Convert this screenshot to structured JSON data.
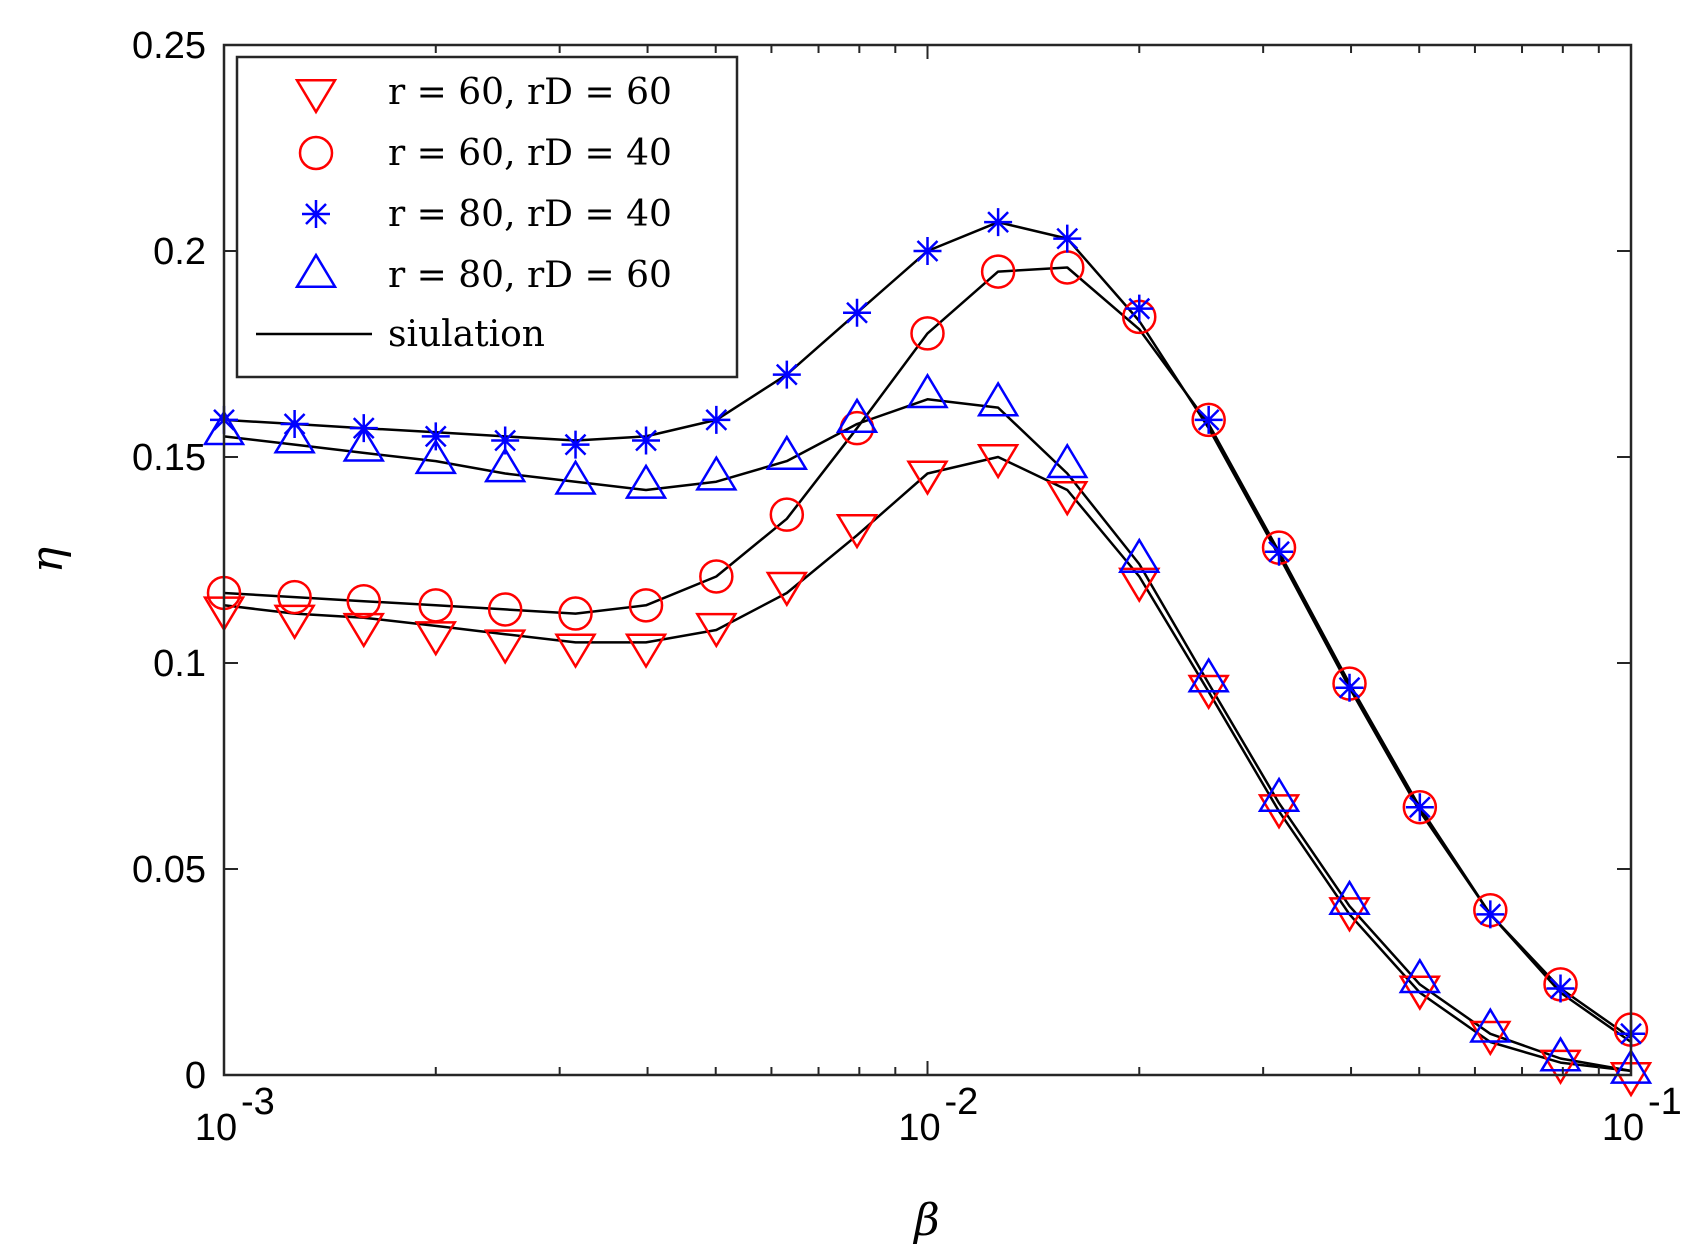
{
  "chart_data": {
    "type": "scatter",
    "title": "",
    "xlabel": "β",
    "ylabel": "η",
    "xscale": "log",
    "xlim": [
      0.001,
      0.1
    ],
    "ylim": [
      0,
      0.25
    ],
    "x_ticks": [
      {
        "value": 0.001,
        "base": "10",
        "exp": "-3"
      },
      {
        "value": 0.01,
        "base": "10",
        "exp": "-2"
      },
      {
        "value": 0.1,
        "base": "10",
        "exp": "-1"
      }
    ],
    "y_ticks": [
      {
        "value": 0,
        "label": "0"
      },
      {
        "value": 0.05,
        "label": "0.05"
      },
      {
        "value": 0.1,
        "label": "0.1"
      },
      {
        "value": 0.15,
        "label": "0.15"
      },
      {
        "value": 0.2,
        "label": "0.2"
      },
      {
        "value": 0.25,
        "label": "0.25"
      }
    ],
    "grid": false,
    "legend_position": "top-left",
    "x": [
      0.001,
      0.00126,
      0.00158,
      0.002,
      0.00251,
      0.00316,
      0.00398,
      0.00501,
      0.00631,
      0.00794,
      0.01,
      0.0126,
      0.0158,
      0.02,
      0.0251,
      0.0316,
      0.0398,
      0.0501,
      0.0631,
      0.0794,
      0.1
    ],
    "series": [
      {
        "name": "r = 60, r_D = 60",
        "legend_label": "r = 60, rD = 60",
        "marker": "triangle-down",
        "color": "#ff0000",
        "values": [
          0.113,
          0.111,
          0.109,
          0.107,
          0.105,
          0.104,
          0.104,
          0.109,
          0.119,
          0.133,
          0.146,
          0.15,
          0.141,
          0.12,
          0.094,
          0.065,
          0.04,
          0.021,
          0.01,
          0.003,
          0.0
        ]
      },
      {
        "name": "r = 60, r_D = 40",
        "legend_label": "r = 60, rD = 40",
        "marker": "circle",
        "color": "#ff0000",
        "values": [
          0.117,
          0.116,
          0.115,
          0.114,
          0.113,
          0.112,
          0.114,
          0.121,
          0.136,
          0.157,
          0.18,
          0.195,
          0.196,
          0.184,
          0.159,
          0.128,
          0.095,
          0.065,
          0.04,
          0.022,
          0.011
        ]
      },
      {
        "name": "r = 80, r_D = 40",
        "legend_label": "r = 80, rD = 40",
        "marker": "asterisk",
        "color": "#0000ff",
        "values": [
          0.159,
          0.158,
          0.157,
          0.155,
          0.154,
          0.153,
          0.154,
          0.159,
          0.17,
          0.185,
          0.2,
          0.207,
          0.203,
          0.186,
          0.159,
          0.127,
          0.094,
          0.065,
          0.039,
          0.021,
          0.01
        ]
      },
      {
        "name": "r = 80, r_D = 60",
        "legend_label": "r = 80, rD = 60",
        "marker": "triangle-up",
        "color": "#0000ff",
        "values": [
          0.156,
          0.154,
          0.152,
          0.149,
          0.147,
          0.144,
          0.143,
          0.145,
          0.15,
          0.159,
          0.165,
          0.163,
          0.148,
          0.125,
          0.096,
          0.067,
          0.042,
          0.023,
          0.011,
          0.004,
          0.001
        ]
      }
    ],
    "simulation": {
      "name": "siulation",
      "color": "#000000",
      "lines": [
        [
          0.114,
          0.112,
          0.111,
          0.109,
          0.107,
          0.105,
          0.105,
          0.108,
          0.117,
          0.131,
          0.146,
          0.15,
          0.142,
          0.121,
          0.093,
          0.064,
          0.039,
          0.02,
          0.008,
          0.003,
          0.001
        ],
        [
          0.117,
          0.116,
          0.115,
          0.114,
          0.113,
          0.112,
          0.114,
          0.121,
          0.135,
          0.157,
          0.18,
          0.195,
          0.196,
          0.181,
          0.158,
          0.127,
          0.095,
          0.065,
          0.039,
          0.021,
          0.009
        ],
        [
          0.159,
          0.158,
          0.157,
          0.156,
          0.155,
          0.154,
          0.155,
          0.159,
          0.17,
          0.185,
          0.2,
          0.207,
          0.203,
          0.183,
          0.157,
          0.126,
          0.094,
          0.064,
          0.039,
          0.02,
          0.008
        ],
        [
          0.155,
          0.153,
          0.151,
          0.149,
          0.146,
          0.144,
          0.142,
          0.144,
          0.149,
          0.158,
          0.164,
          0.162,
          0.146,
          0.124,
          0.095,
          0.066,
          0.041,
          0.022,
          0.01,
          0.004,
          0.001
        ]
      ]
    }
  }
}
